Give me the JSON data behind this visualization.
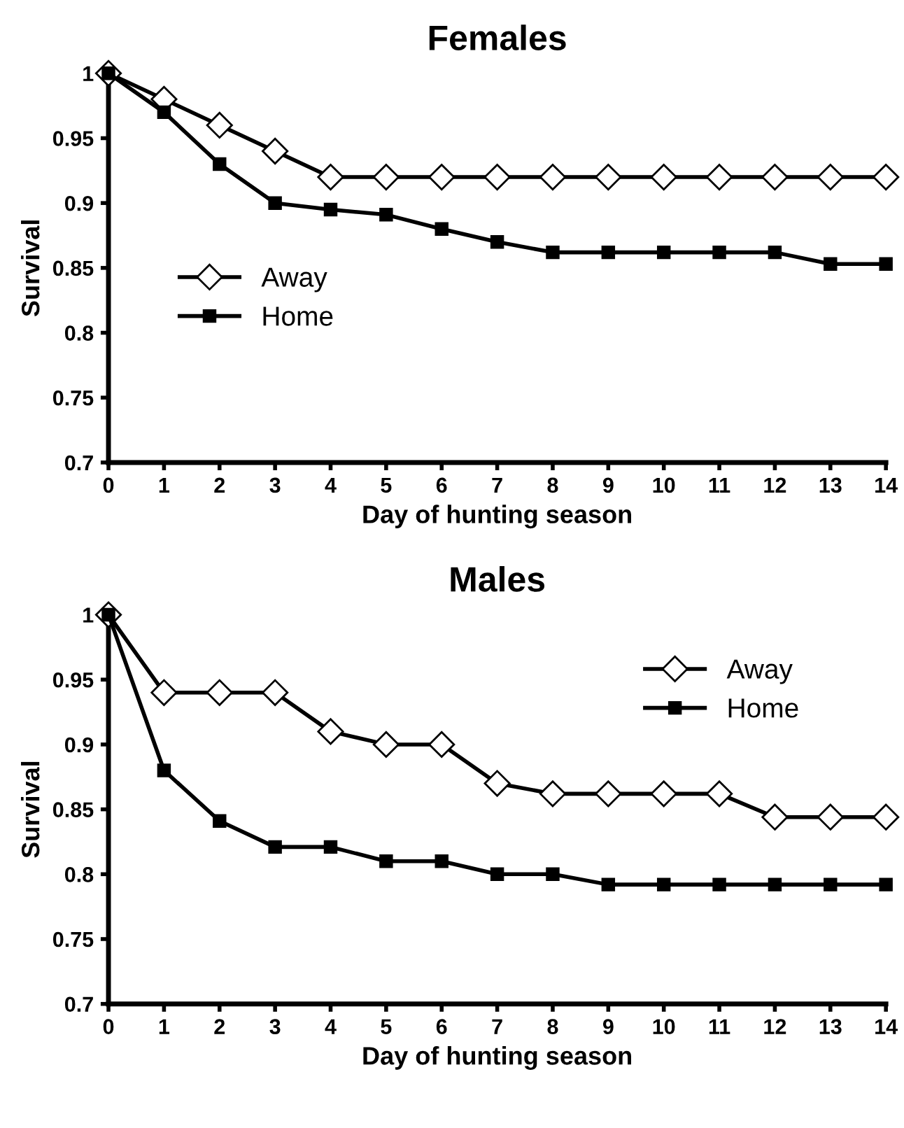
{
  "chart_data": [
    {
      "type": "line",
      "title": "Females",
      "xlabel": "Day of hunting season",
      "ylabel": "Survival",
      "x": [
        0,
        1,
        2,
        3,
        4,
        5,
        6,
        7,
        8,
        9,
        10,
        11,
        12,
        13,
        14
      ],
      "xlim": [
        0,
        14
      ],
      "xticks": [
        0,
        1,
        2,
        3,
        4,
        5,
        6,
        7,
        8,
        9,
        10,
        11,
        12,
        13,
        14
      ],
      "ylim": [
        0.7,
        1
      ],
      "yticks": [
        0.7,
        0.75,
        0.8,
        0.85,
        0.9,
        0.95,
        1
      ],
      "grid": false,
      "legend": "left",
      "line_style": "solid",
      "series": [
        {
          "name": "Away",
          "color": "#000000",
          "marker": "diamond",
          "values": [
            1,
            0.98,
            0.96,
            0.94,
            0.92,
            0.92,
            0.92,
            0.92,
            0.92,
            0.92,
            0.92,
            0.92,
            0.92,
            0.92,
            0.92
          ]
        },
        {
          "name": "Home",
          "color": "#000000",
          "marker": "square",
          "values": [
            1,
            0.97,
            0.93,
            0.9,
            0.895,
            0.891,
            0.88,
            0.87,
            0.862,
            0.862,
            0.862,
            0.862,
            0.862,
            0.853,
            0.853
          ]
        }
      ]
    },
    {
      "type": "line",
      "title": "Males",
      "xlabel": "Day of hunting season",
      "ylabel": "Survival",
      "x": [
        0,
        1,
        2,
        3,
        4,
        5,
        6,
        7,
        8,
        9,
        10,
        11,
        12,
        13,
        14
      ],
      "xlim": [
        0,
        14
      ],
      "xticks": [
        0,
        1,
        2,
        3,
        4,
        5,
        6,
        7,
        8,
        9,
        10,
        11,
        12,
        13,
        14
      ],
      "ylim": [
        0.7,
        1
      ],
      "yticks": [
        0.7,
        0.75,
        0.8,
        0.85,
        0.9,
        0.95,
        1
      ],
      "grid": false,
      "legend": "top right",
      "line_style": "solid",
      "series": [
        {
          "name": "Away",
          "color": "#000000",
          "marker": "diamond",
          "values": [
            1,
            0.94,
            0.94,
            0.94,
            0.91,
            0.9,
            0.9,
            0.87,
            0.862,
            0.862,
            0.862,
            0.862,
            0.844,
            0.844,
            0.844
          ]
        },
        {
          "name": "Home",
          "color": "#000000",
          "marker": "square",
          "values": [
            1,
            0.88,
            0.841,
            0.821,
            0.821,
            0.81,
            0.81,
            0.8,
            0.8,
            0.792,
            0.792,
            0.792,
            0.792,
            0.792,
            0.792
          ]
        }
      ]
    }
  ]
}
